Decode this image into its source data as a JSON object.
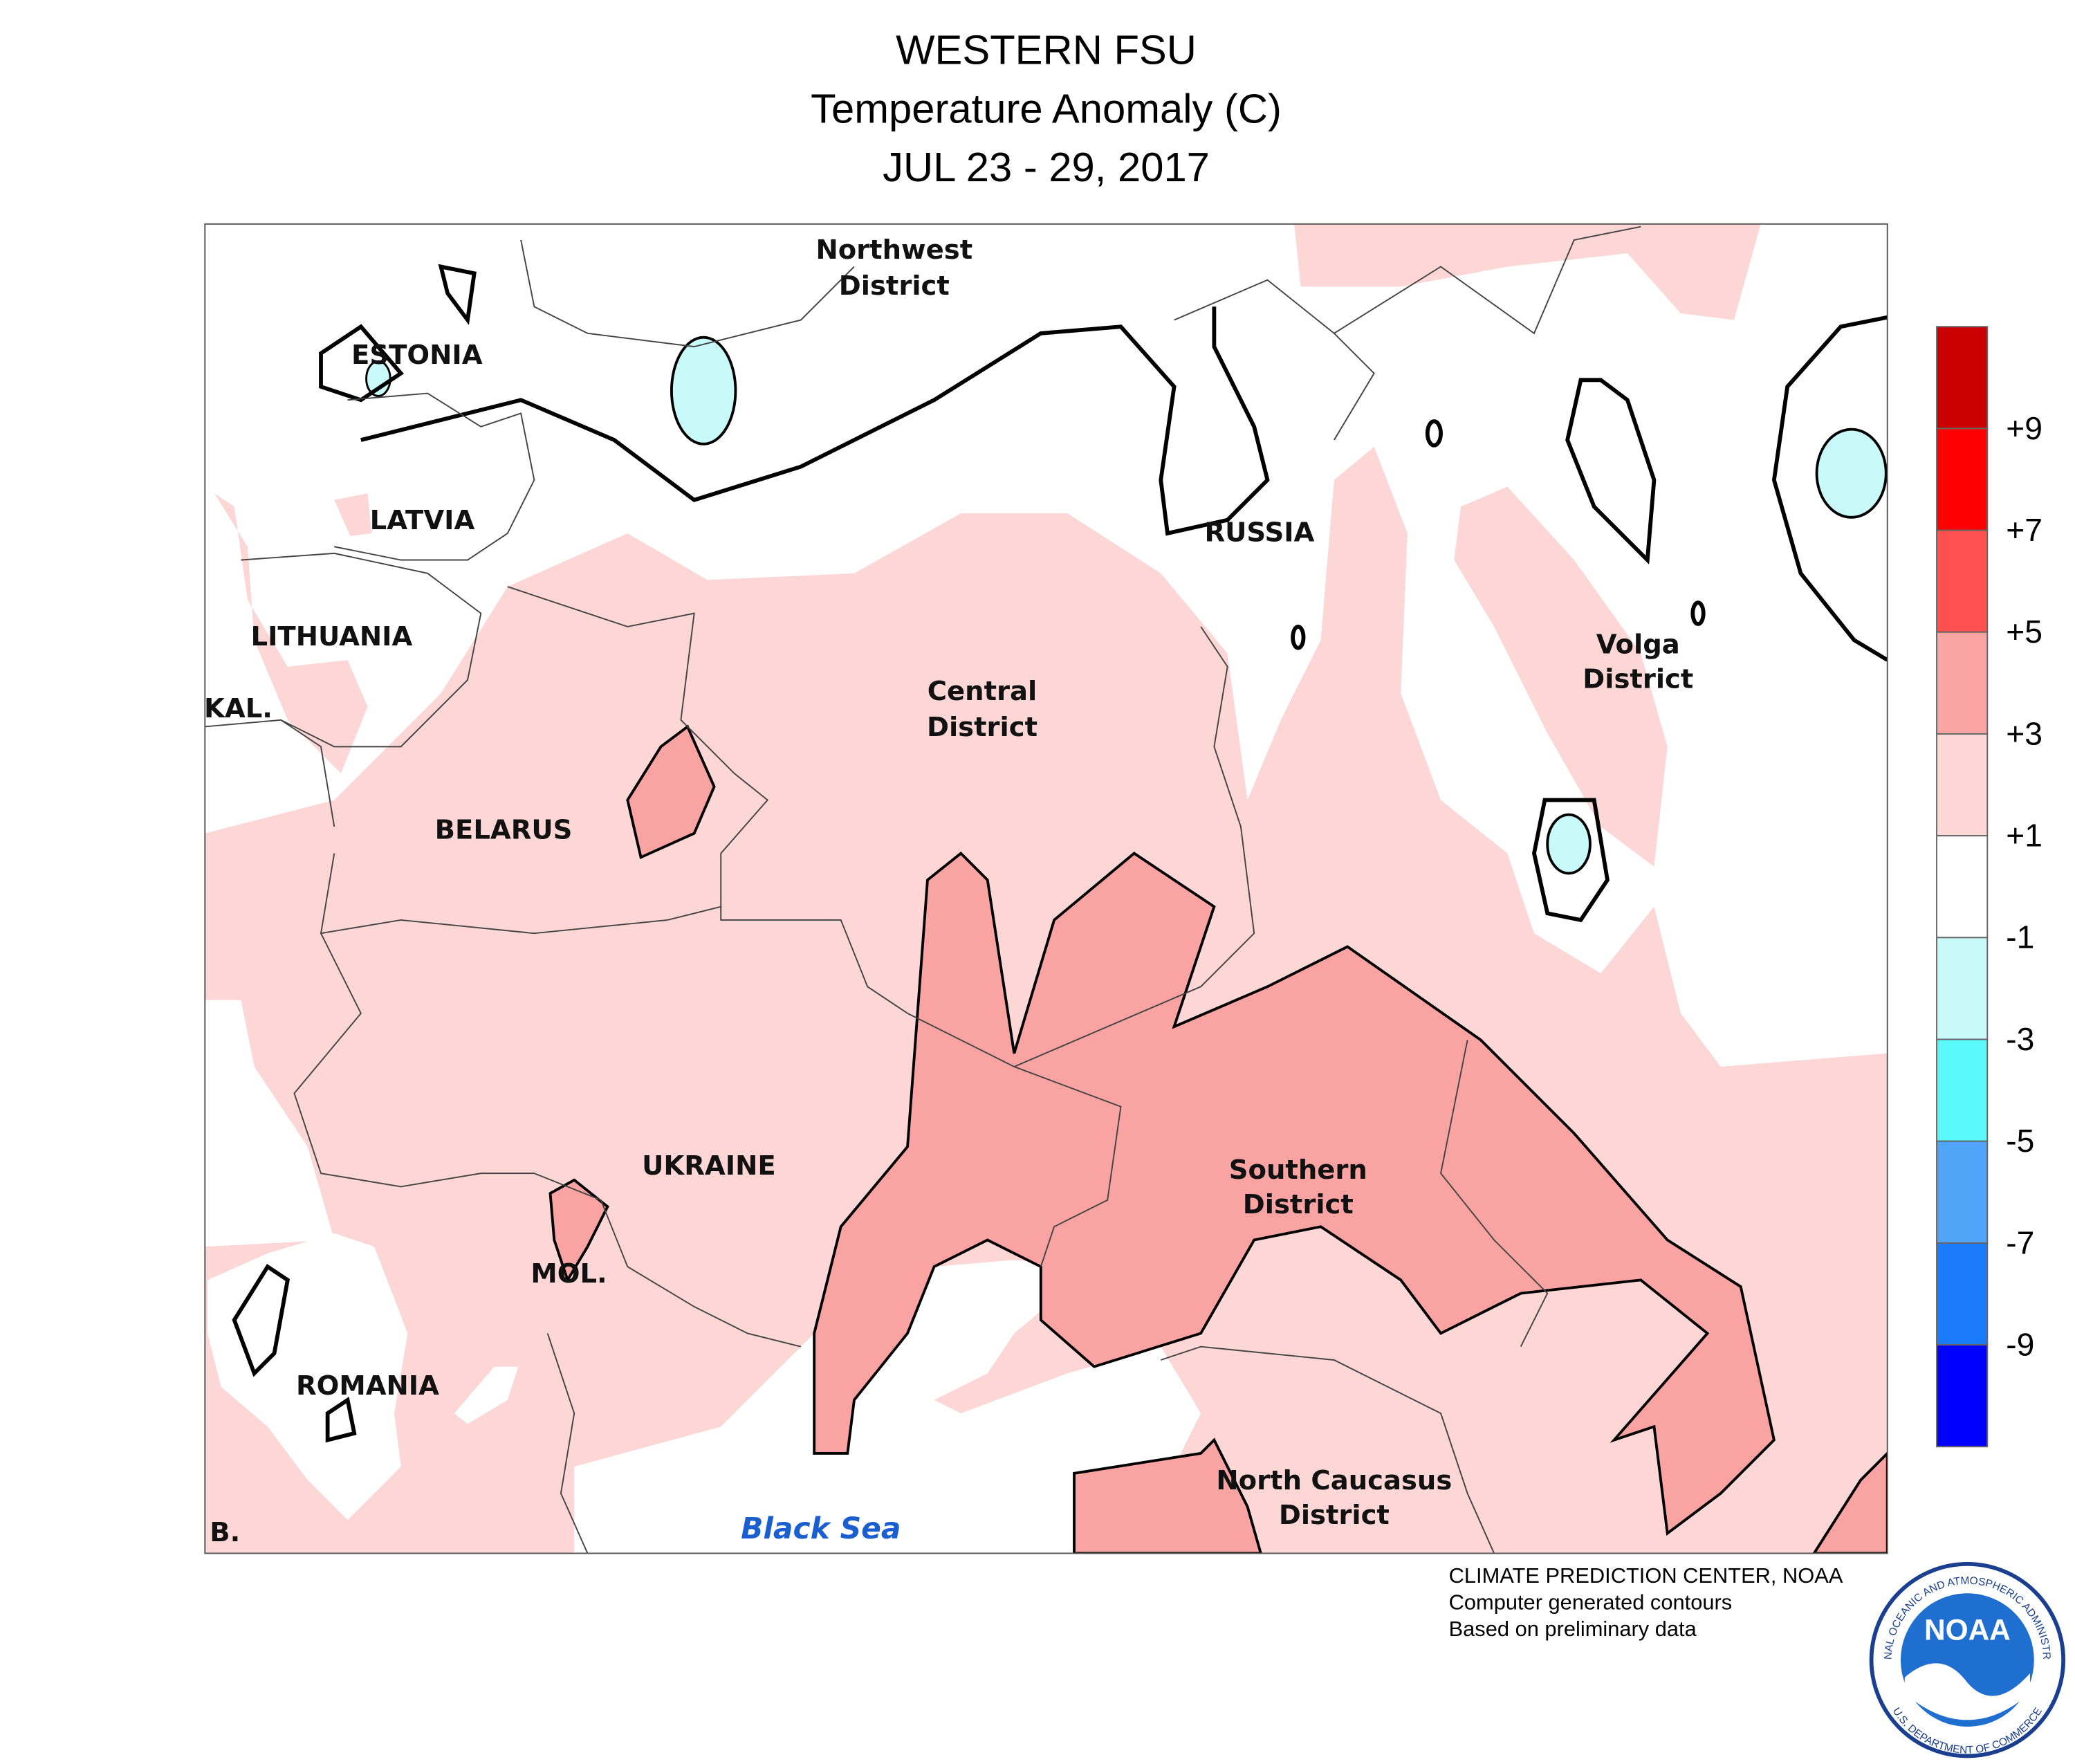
{
  "header": {
    "title_lines": [
      "WESTERN FSU",
      "Temperature Anomaly (C)",
      "JUL 23 - 29, 2017"
    ]
  },
  "map_labels": {
    "northwest": [
      "Northwest",
      "District"
    ],
    "estonia": "ESTONIA",
    "latvia": "LATVIA",
    "lithuania": "LITHUANIA",
    "kaliningrad": "KAL.",
    "belarus": "BELARUS",
    "russia": "RUSSIA",
    "central": [
      "Central",
      "District"
    ],
    "volga": [
      "Volga",
      "District"
    ],
    "ukraine": "UKRAINE",
    "moldova": "MOL.",
    "romania": "ROMANIA",
    "serbia": "B.",
    "southern": [
      "Southern",
      "District"
    ],
    "north_caucasus": [
      "North Caucasus",
      "District"
    ],
    "black_sea": "Black Sea"
  },
  "legend": {
    "colors": [
      "#c80000",
      "#ff0000",
      "#ff5050",
      "#f9a3a3",
      "#fdd6d6",
      "#ffffff",
      "#c8fafa",
      "#5af8f8",
      "#52a4f8",
      "#1a7cfa",
      "#0000ff"
    ],
    "labels": [
      "+9",
      "+7",
      "+5",
      "+3",
      "+1",
      "-1",
      "-3",
      "-5",
      "-7",
      "-9"
    ]
  },
  "credits": [
    "CLIMATE PREDICTION CENTER, NOAA",
    "Computer generated contours",
    "Based on preliminary data"
  ],
  "logo": {
    "text": "NOAA",
    "top_ring": "NATIONAL OCEANIC AND ATMOSPHERIC ADMINISTRATION",
    "bottom_ring": "U.S. DEPARTMENT OF COMMERCE"
  }
}
